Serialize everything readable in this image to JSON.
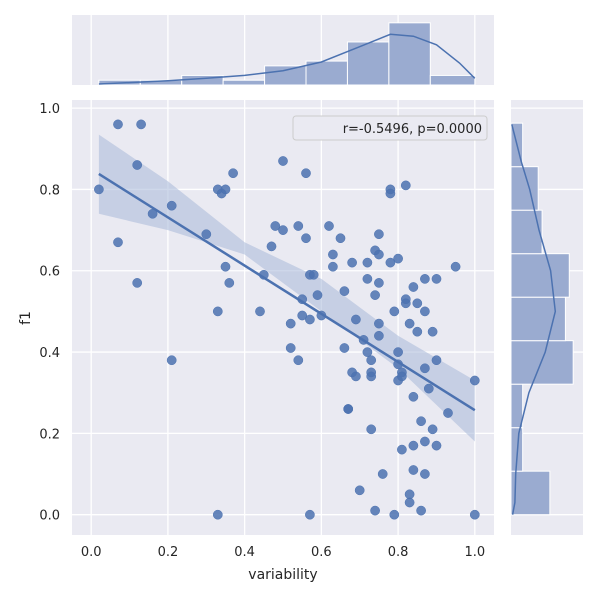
{
  "chart_data": {
    "type": "scatter",
    "xlabel": "variability",
    "ylabel": "f1",
    "xlim": [
      -0.05,
      1.05
    ],
    "ylim": [
      -0.05,
      1.02
    ],
    "xticks": [
      "0.0",
      "0.2",
      "0.4",
      "0.6",
      "0.8",
      "1.0"
    ],
    "yticks": [
      "0.0",
      "0.2",
      "0.4",
      "0.6",
      "0.8",
      "1.0"
    ],
    "grid": true,
    "legend": {
      "text": "r=-0.5496, p=0.0000",
      "position": "top-right"
    },
    "colors": {
      "background": "#eaeaf2",
      "grid": "#ffffff",
      "points": "#4c72b0",
      "line": "#4c72b0",
      "band": "#a8b8d8",
      "hist": "#9aabd0"
    },
    "regression": {
      "x": [
        0.02,
        1.0
      ],
      "y": [
        0.838,
        0.257
      ]
    },
    "confidence_band": {
      "x": [
        0.02,
        0.2,
        0.4,
        0.6,
        0.8,
        1.0
      ],
      "lower": [
        0.74,
        0.7,
        0.64,
        0.5,
        0.36,
        0.18
      ],
      "upper": [
        0.935,
        0.82,
        0.67,
        0.58,
        0.44,
        0.33
      ]
    },
    "points": [
      {
        "x": 0.02,
        "y": 0.8
      },
      {
        "x": 0.07,
        "y": 0.96
      },
      {
        "x": 0.07,
        "y": 0.67
      },
      {
        "x": 0.12,
        "y": 0.86
      },
      {
        "x": 0.13,
        "y": 0.96
      },
      {
        "x": 0.12,
        "y": 0.57
      },
      {
        "x": 0.16,
        "y": 0.74
      },
      {
        "x": 0.21,
        "y": 0.76
      },
      {
        "x": 0.21,
        "y": 0.38
      },
      {
        "x": 0.3,
        "y": 0.69
      },
      {
        "x": 0.33,
        "y": 0.5
      },
      {
        "x": 0.33,
        "y": 0.8
      },
      {
        "x": 0.34,
        "y": 0.79
      },
      {
        "x": 0.35,
        "y": 0.8
      },
      {
        "x": 0.35,
        "y": 0.61
      },
      {
        "x": 0.36,
        "y": 0.57
      },
      {
        "x": 0.37,
        "y": 0.84
      },
      {
        "x": 0.33,
        "y": 0.0
      },
      {
        "x": 0.44,
        "y": 0.5
      },
      {
        "x": 0.45,
        "y": 0.59
      },
      {
        "x": 0.47,
        "y": 0.66
      },
      {
        "x": 0.48,
        "y": 0.71
      },
      {
        "x": 0.5,
        "y": 0.7
      },
      {
        "x": 0.5,
        "y": 0.87
      },
      {
        "x": 0.52,
        "y": 0.47
      },
      {
        "x": 0.52,
        "y": 0.41
      },
      {
        "x": 0.54,
        "y": 0.38
      },
      {
        "x": 0.54,
        "y": 0.71
      },
      {
        "x": 0.55,
        "y": 0.53
      },
      {
        "x": 0.55,
        "y": 0.49
      },
      {
        "x": 0.56,
        "y": 0.84
      },
      {
        "x": 0.56,
        "y": 0.68
      },
      {
        "x": 0.57,
        "y": 0.59
      },
      {
        "x": 0.57,
        "y": 0.48
      },
      {
        "x": 0.58,
        "y": 0.59
      },
      {
        "x": 0.59,
        "y": 0.54
      },
      {
        "x": 0.6,
        "y": 0.49
      },
      {
        "x": 0.57,
        "y": 0.0
      },
      {
        "x": 0.62,
        "y": 0.71
      },
      {
        "x": 0.63,
        "y": 0.64
      },
      {
        "x": 0.63,
        "y": 0.61
      },
      {
        "x": 0.65,
        "y": 0.68
      },
      {
        "x": 0.66,
        "y": 0.55
      },
      {
        "x": 0.67,
        "y": 0.26
      },
      {
        "x": 0.66,
        "y": 0.41
      },
      {
        "x": 0.67,
        "y": 0.26
      },
      {
        "x": 0.68,
        "y": 0.62
      },
      {
        "x": 0.68,
        "y": 0.35
      },
      {
        "x": 0.69,
        "y": 0.34
      },
      {
        "x": 0.69,
        "y": 0.48
      },
      {
        "x": 0.7,
        "y": 0.06
      },
      {
        "x": 0.71,
        "y": 0.43
      },
      {
        "x": 0.72,
        "y": 0.62
      },
      {
        "x": 0.72,
        "y": 0.58
      },
      {
        "x": 0.72,
        "y": 0.4
      },
      {
        "x": 0.73,
        "y": 0.38
      },
      {
        "x": 0.73,
        "y": 0.34
      },
      {
        "x": 0.73,
        "y": 0.35
      },
      {
        "x": 0.73,
        "y": 0.21
      },
      {
        "x": 0.74,
        "y": 0.65
      },
      {
        "x": 0.74,
        "y": 0.54
      },
      {
        "x": 0.75,
        "y": 0.69
      },
      {
        "x": 0.75,
        "y": 0.64
      },
      {
        "x": 0.75,
        "y": 0.57
      },
      {
        "x": 0.75,
        "y": 0.47
      },
      {
        "x": 0.75,
        "y": 0.44
      },
      {
        "x": 0.74,
        "y": 0.01
      },
      {
        "x": 0.76,
        "y": 0.1
      },
      {
        "x": 0.78,
        "y": 0.8
      },
      {
        "x": 0.78,
        "y": 0.79
      },
      {
        "x": 0.78,
        "y": 0.62
      },
      {
        "x": 0.79,
        "y": 0.5
      },
      {
        "x": 0.8,
        "y": 0.4
      },
      {
        "x": 0.79,
        "y": 0.0
      },
      {
        "x": 0.8,
        "y": 0.63
      },
      {
        "x": 0.8,
        "y": 0.37
      },
      {
        "x": 0.8,
        "y": 0.33
      },
      {
        "x": 0.81,
        "y": 0.35
      },
      {
        "x": 0.81,
        "y": 0.34
      },
      {
        "x": 0.81,
        "y": 0.16
      },
      {
        "x": 0.82,
        "y": 0.81
      },
      {
        "x": 0.82,
        "y": 0.53
      },
      {
        "x": 0.82,
        "y": 0.52
      },
      {
        "x": 0.83,
        "y": 0.47
      },
      {
        "x": 0.83,
        "y": 0.05
      },
      {
        "x": 0.84,
        "y": 0.56
      },
      {
        "x": 0.84,
        "y": 0.29
      },
      {
        "x": 0.84,
        "y": 0.17
      },
      {
        "x": 0.84,
        "y": 0.11
      },
      {
        "x": 0.83,
        "y": 0.03
      },
      {
        "x": 0.85,
        "y": 0.52
      },
      {
        "x": 0.85,
        "y": 0.45
      },
      {
        "x": 0.86,
        "y": 0.23
      },
      {
        "x": 0.86,
        "y": 0.01
      },
      {
        "x": 0.87,
        "y": 0.58
      },
      {
        "x": 0.87,
        "y": 0.5
      },
      {
        "x": 0.87,
        "y": 0.36
      },
      {
        "x": 0.87,
        "y": 0.18
      },
      {
        "x": 0.87,
        "y": 0.1
      },
      {
        "x": 0.88,
        "y": 0.31
      },
      {
        "x": 0.89,
        "y": 0.45
      },
      {
        "x": 0.89,
        "y": 0.21
      },
      {
        "x": 0.9,
        "y": 0.58
      },
      {
        "x": 0.9,
        "y": 0.38
      },
      {
        "x": 0.9,
        "y": 0.17
      },
      {
        "x": 0.93,
        "y": 0.25
      },
      {
        "x": 0.95,
        "y": 0.61
      },
      {
        "x": 1.0,
        "y": 0.33
      },
      {
        "x": 1.0,
        "y": 0.0
      }
    ],
    "x_histogram": {
      "bins": [
        0.02,
        0.128,
        0.236,
        0.344,
        0.452,
        0.56,
        0.668,
        0.776,
        0.884,
        1.0
      ],
      "counts": [
        1,
        1,
        2,
        1,
        4,
        5,
        9,
        13,
        2
      ],
      "kde": [
        [
          0.02,
          0.2
        ],
        [
          0.1,
          0.5
        ],
        [
          0.2,
          0.9
        ],
        [
          0.3,
          1.4
        ],
        [
          0.4,
          2.0
        ],
        [
          0.5,
          3.0
        ],
        [
          0.6,
          4.8
        ],
        [
          0.7,
          8.0
        ],
        [
          0.78,
          10.6
        ],
        [
          0.84,
          10.2
        ],
        [
          0.9,
          8.4
        ],
        [
          0.96,
          4.6
        ],
        [
          1.0,
          1.4
        ]
      ]
    },
    "y_histogram": {
      "bins": [
        0.0,
        0.107,
        0.214,
        0.321,
        0.428,
        0.535,
        0.642,
        0.749,
        0.856,
        0.963
      ],
      "counts": [
        10,
        3,
        3,
        16,
        14,
        15,
        8,
        7,
        3
      ],
      "kde": [
        [
          0.0,
          0.4
        ],
        [
          0.03,
          1.0
        ],
        [
          0.1,
          1.2
        ],
        [
          0.2,
          2.0
        ],
        [
          0.3,
          4.6
        ],
        [
          0.4,
          8.8
        ],
        [
          0.5,
          11.4
        ],
        [
          0.6,
          10.2
        ],
        [
          0.7,
          7.2
        ],
        [
          0.8,
          4.8
        ],
        [
          0.87,
          2.6
        ],
        [
          0.93,
          1.0
        ],
        [
          0.96,
          0.2
        ]
      ]
    }
  }
}
